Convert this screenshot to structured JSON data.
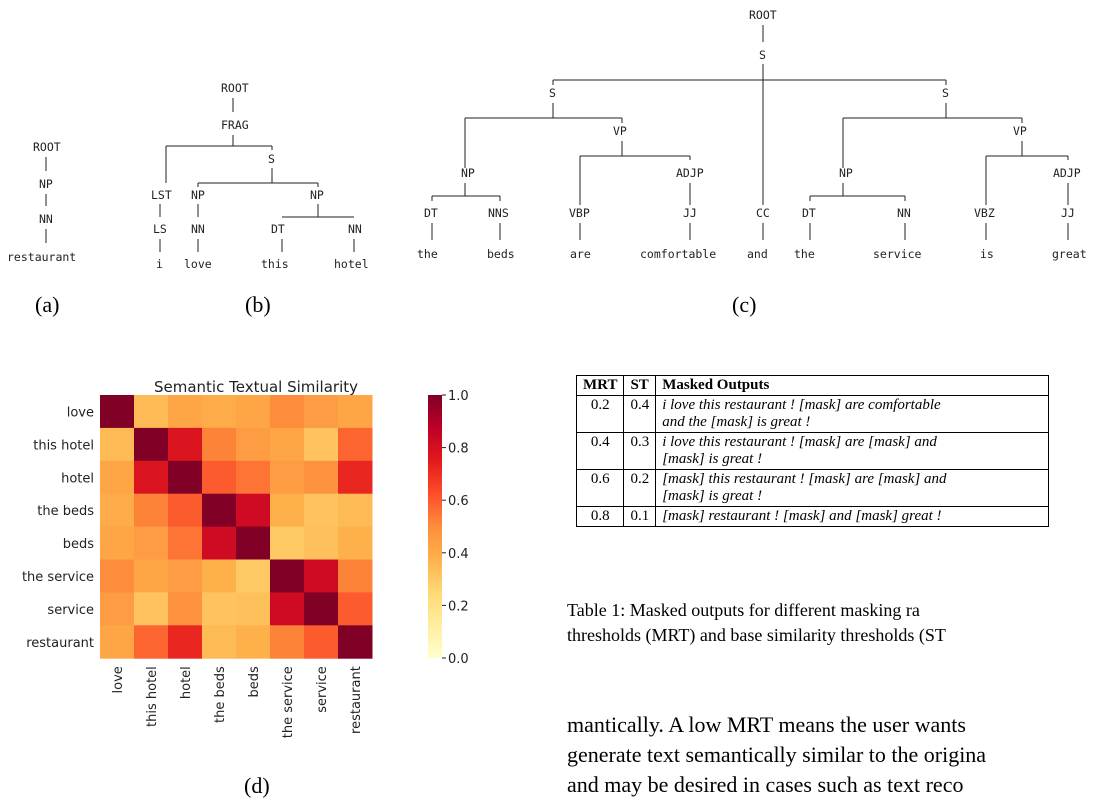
{
  "trees": {
    "a": {
      "caption": "(a)",
      "nodes": [
        "ROOT",
        "NP",
        "NN",
        "restaurant"
      ]
    },
    "b": {
      "caption": "(b)",
      "nodes": [
        "ROOT",
        "FRAG",
        "S",
        "LST",
        "NP",
        "NP",
        "LS",
        "NN",
        "DT",
        "NN"
      ],
      "words": [
        "i",
        "love",
        "this",
        "hotel"
      ]
    },
    "c": {
      "caption": "(c)",
      "nodes": [
        "ROOT",
        "S",
        "S",
        "S",
        "NP",
        "VP",
        "NP",
        "VP",
        "DT",
        "NNS",
        "VBP",
        "ADJP",
        "JJ",
        "CC",
        "DT",
        "NN",
        "VBZ",
        "ADJP",
        "JJ"
      ],
      "words": [
        "the",
        "beds",
        "are",
        "comfortable",
        "and",
        "the",
        "service",
        "is",
        "great"
      ]
    }
  },
  "chart_data": {
    "type": "heatmap",
    "title": "Semantic Textual Similarity",
    "caption": "(d)",
    "labels": [
      "love",
      "this hotel",
      "hotel",
      "the beds",
      "beds",
      "the service",
      "service",
      "restaurant"
    ],
    "matrix": [
      [
        1.0,
        0.35,
        0.42,
        0.4,
        0.42,
        0.5,
        0.45,
        0.42
      ],
      [
        0.35,
        1.0,
        0.78,
        0.52,
        0.45,
        0.42,
        0.32,
        0.58
      ],
      [
        0.42,
        0.78,
        1.0,
        0.6,
        0.55,
        0.45,
        0.48,
        0.72
      ],
      [
        0.4,
        0.52,
        0.6,
        1.0,
        0.82,
        0.38,
        0.32,
        0.35
      ],
      [
        0.42,
        0.45,
        0.55,
        0.82,
        1.0,
        0.3,
        0.33,
        0.38
      ],
      [
        0.5,
        0.42,
        0.45,
        0.38,
        0.3,
        1.0,
        0.82,
        0.52
      ],
      [
        0.45,
        0.32,
        0.48,
        0.32,
        0.33,
        0.82,
        1.0,
        0.6
      ],
      [
        0.42,
        0.58,
        0.72,
        0.35,
        0.38,
        0.52,
        0.6,
        1.0
      ]
    ],
    "colorbar": {
      "min": 0.0,
      "max": 1.0,
      "ticks": [
        "0.0",
        "0.2",
        "0.4",
        "0.6",
        "0.8",
        "1.0"
      ],
      "colormap": "YlOrRd"
    }
  },
  "table": {
    "headers": [
      "MRT",
      "ST",
      "Masked Outputs"
    ],
    "rows": [
      {
        "mrt": "0.2",
        "st": "0.4",
        "line1": "i love this restaurant ! [mask] are comfortable",
        "line2": "and the [mask] is great !"
      },
      {
        "mrt": "0.4",
        "st": "0.3",
        "line1": "i love this restaurant ! [mask] are [mask] and",
        "line2": "[mask] is great !"
      },
      {
        "mrt": "0.6",
        "st": "0.2",
        "line1": "[mask] this restaurant ! [mask] are [mask] and",
        "line2": "[mask] is great !"
      },
      {
        "mrt": "0.8",
        "st": "0.1",
        "line1": "[mask] restaurant ! [mask] and [mask] great !",
        "line2": ""
      }
    ],
    "caption_line1": "Table 1:   Masked outputs for different masking ra",
    "caption_line2": "thresholds (MRT) and base similarity thresholds (ST"
  },
  "body_text": {
    "line1": "mantically. A low MRT means the user wants",
    "line2": "generate text semantically similar to the origina",
    "line3": "and may be desired in cases such as text reco"
  }
}
